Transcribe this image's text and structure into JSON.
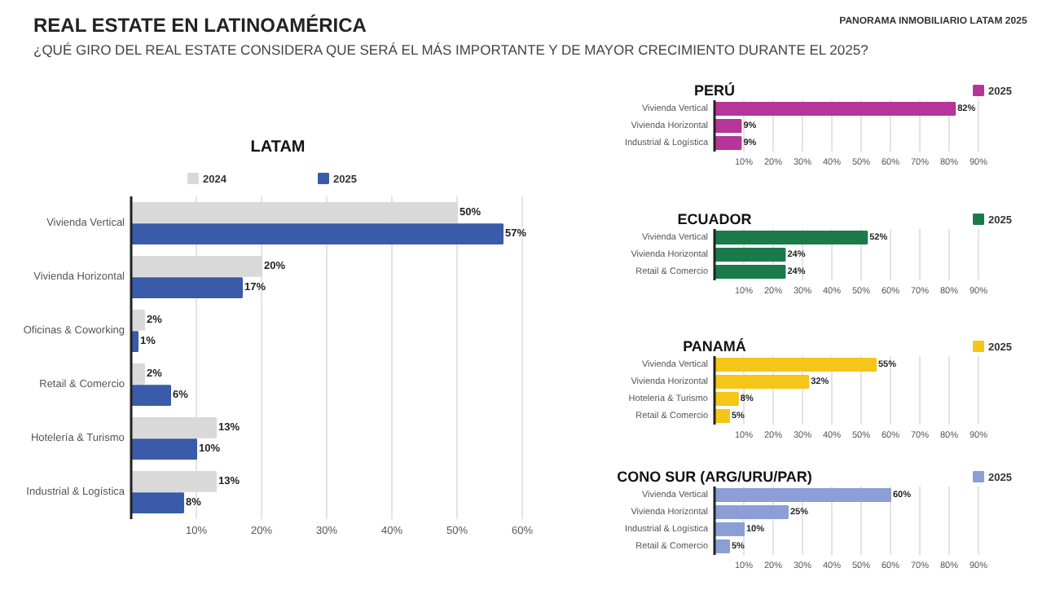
{
  "chart_data": [
    {
      "type": "other",
      "title": "REAL ESTATE EN LATINOAMÉRICA",
      "subtitle": "¿QUÉ GIRO DEL REAL ESTATE CONSIDERA QUE SERÁ EL MÁS IMPORTANTE Y DE MAYOR CRECIMIENTO DURANTE EL 2025?",
      "annotations": [
        "PANORAMA INMOBILIARIO LATAM 2025"
      ]
    },
    {
      "type": "bar",
      "orientation": "horizontal",
      "title": "LATAM",
      "categories": [
        "Vivienda Vertical",
        "Vivienda Horizontal",
        "Oficinas & Coworking",
        "Retail & Comercio",
        "Hotelería & Turismo",
        "Industrial & Logística"
      ],
      "series": [
        {
          "name": "2024",
          "color": "#d9d9d9",
          "values": [
            50,
            20,
            2,
            2,
            13,
            13
          ],
          "value_labels": [
            "50%",
            "20%",
            "2%",
            "2%",
            "13%",
            "13%"
          ]
        },
        {
          "name": "2025",
          "color": "#3a5ba9",
          "values": [
            57,
            17,
            1,
            6,
            10,
            8
          ],
          "value_labels": [
            "57%",
            "17%",
            "1%",
            "6%",
            "10%",
            "8%"
          ]
        }
      ],
      "xlim": [
        0,
        60
      ],
      "xticks": [
        {
          "value": 10,
          "label": "10%"
        },
        {
          "value": 20,
          "label": "20%"
        },
        {
          "value": 30,
          "label": "30%"
        },
        {
          "value": 40,
          "label": "40%"
        },
        {
          "value": 50,
          "label": "50%"
        },
        {
          "value": 60,
          "label": "60%"
        }
      ],
      "grid": "x",
      "legend": "top"
    },
    {
      "type": "bar",
      "orientation": "horizontal",
      "title": "PERÚ",
      "categories": [
        "Vivienda Vertical",
        "Vivienda Horizontal",
        "Industrial & Logística"
      ],
      "series": [
        {
          "name": "2025",
          "color": "#b5359b",
          "values": [
            82,
            9,
            9
          ],
          "value_labels": [
            "82%",
            "9%",
            "9%"
          ]
        }
      ],
      "xlim": [
        0,
        90
      ],
      "xticks": [
        {
          "value": 10,
          "label": "10%"
        },
        {
          "value": 20,
          "label": "20%"
        },
        {
          "value": 30,
          "label": "30%"
        },
        {
          "value": 40,
          "label": "40%"
        },
        {
          "value": 50,
          "label": "50%"
        },
        {
          "value": 60,
          "label": "60%"
        },
        {
          "value": 70,
          "label": "70%"
        },
        {
          "value": 80,
          "label": "80%"
        },
        {
          "value": 90,
          "label": "90%"
        }
      ],
      "grid": "x",
      "legend": "top right"
    },
    {
      "type": "bar",
      "orientation": "horizontal",
      "title": "ECUADOR",
      "categories": [
        "Vivienda Vertical",
        "Vivienda Horizontal",
        "Retail & Comercio"
      ],
      "series": [
        {
          "name": "2025",
          "color": "#1a7a4a",
          "values": [
            52,
            24,
            24
          ],
          "value_labels": [
            "52%",
            "24%",
            "24%"
          ]
        }
      ],
      "xlim": [
        0,
        90
      ],
      "xticks": [
        {
          "value": 10,
          "label": "10%"
        },
        {
          "value": 20,
          "label": "20%"
        },
        {
          "value": 30,
          "label": "30%"
        },
        {
          "value": 40,
          "label": "40%"
        },
        {
          "value": 50,
          "label": "50%"
        },
        {
          "value": 60,
          "label": "60%"
        },
        {
          "value": 70,
          "label": "70%"
        },
        {
          "value": 80,
          "label": "80%"
        },
        {
          "value": 90,
          "label": "90%"
        }
      ],
      "grid": "x",
      "legend": "top right"
    },
    {
      "type": "bar",
      "orientation": "horizontal",
      "title": "PANAMÁ",
      "categories": [
        "Vivienda Vertical",
        "Vivienda Horizontal",
        "Hotelería & Turismo",
        "Retail & Comercio"
      ],
      "series": [
        {
          "name": "2025",
          "color": "#f5c518",
          "values": [
            55,
            32,
            8,
            5
          ],
          "value_labels": [
            "55%",
            "32%",
            "8%",
            "5%"
          ]
        }
      ],
      "xlim": [
        0,
        90
      ],
      "xticks": [
        {
          "value": 10,
          "label": "10%"
        },
        {
          "value": 20,
          "label": "20%"
        },
        {
          "value": 30,
          "label": "30%"
        },
        {
          "value": 40,
          "label": "40%"
        },
        {
          "value": 50,
          "label": "50%"
        },
        {
          "value": 60,
          "label": "60%"
        },
        {
          "value": 70,
          "label": "70%"
        },
        {
          "value": 80,
          "label": "80%"
        },
        {
          "value": 90,
          "label": "90%"
        }
      ],
      "grid": "x",
      "legend": "top right"
    },
    {
      "type": "bar",
      "orientation": "horizontal",
      "title": "CONO SUR (ARG/URU/PAR)",
      "categories": [
        "Vivienda Vertical",
        "Vivienda Horizontal",
        "Industrial & Logística",
        "Retail & Comercio"
      ],
      "series": [
        {
          "name": "2025",
          "color": "#8b9fd6",
          "values": [
            60,
            25,
            10,
            5
          ],
          "value_labels": [
            "60%",
            "25%",
            "10%",
            "5%"
          ]
        }
      ],
      "xlim": [
        0,
        90
      ],
      "xticks": [
        {
          "value": 10,
          "label": "10%"
        },
        {
          "value": 20,
          "label": "20%"
        },
        {
          "value": 30,
          "label": "30%"
        },
        {
          "value": 40,
          "label": "40%"
        },
        {
          "value": 50,
          "label": "50%"
        },
        {
          "value": 60,
          "label": "60%"
        },
        {
          "value": 70,
          "label": "70%"
        },
        {
          "value": 80,
          "label": "80%"
        },
        {
          "value": 90,
          "label": "90%"
        }
      ],
      "grid": "x",
      "legend": "top right"
    }
  ]
}
